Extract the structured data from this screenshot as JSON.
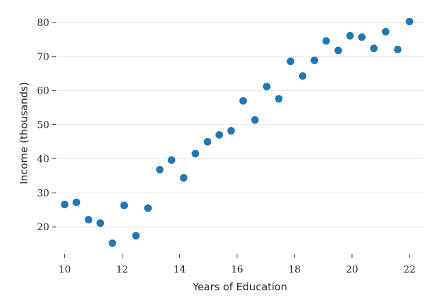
{
  "chart_data": {
    "type": "scatter",
    "title": "",
    "xlabel": "Years of Education",
    "ylabel": "Income (thousands)",
    "xlim": [
      9.7,
      22.5
    ],
    "ylim": [
      12,
      83
    ],
    "x_ticks": [
      10,
      12,
      14,
      16,
      18,
      20,
      22
    ],
    "y_ticks": [
      20,
      30,
      40,
      50,
      60,
      70,
      80
    ],
    "grid": "horizontal",
    "legend": "none",
    "colors": {
      "points": "#1f77b4",
      "grid": "#e6e6e6"
    },
    "series": [
      {
        "x": [
          10.0,
          10.41,
          10.83,
          11.24,
          11.66,
          12.07,
          12.48,
          12.9,
          13.31,
          13.72,
          14.14,
          14.55,
          14.97,
          15.38,
          15.79,
          16.21,
          16.62,
          17.03,
          17.45,
          17.86,
          18.28,
          18.69,
          19.1,
          19.52,
          19.93,
          20.34,
          20.76,
          21.17,
          21.59,
          22.0
        ],
        "y": [
          26.6,
          27.2,
          22.1,
          21.1,
          15.2,
          26.3,
          17.4,
          25.5,
          36.8,
          39.6,
          34.4,
          41.5,
          45.0,
          47.0,
          48.2,
          57.0,
          51.4,
          61.2,
          57.6,
          68.6,
          64.3,
          68.9,
          74.6,
          71.8,
          76.1,
          75.7,
          72.4,
          77.3,
          72.1,
          80.3
        ]
      }
    ]
  }
}
